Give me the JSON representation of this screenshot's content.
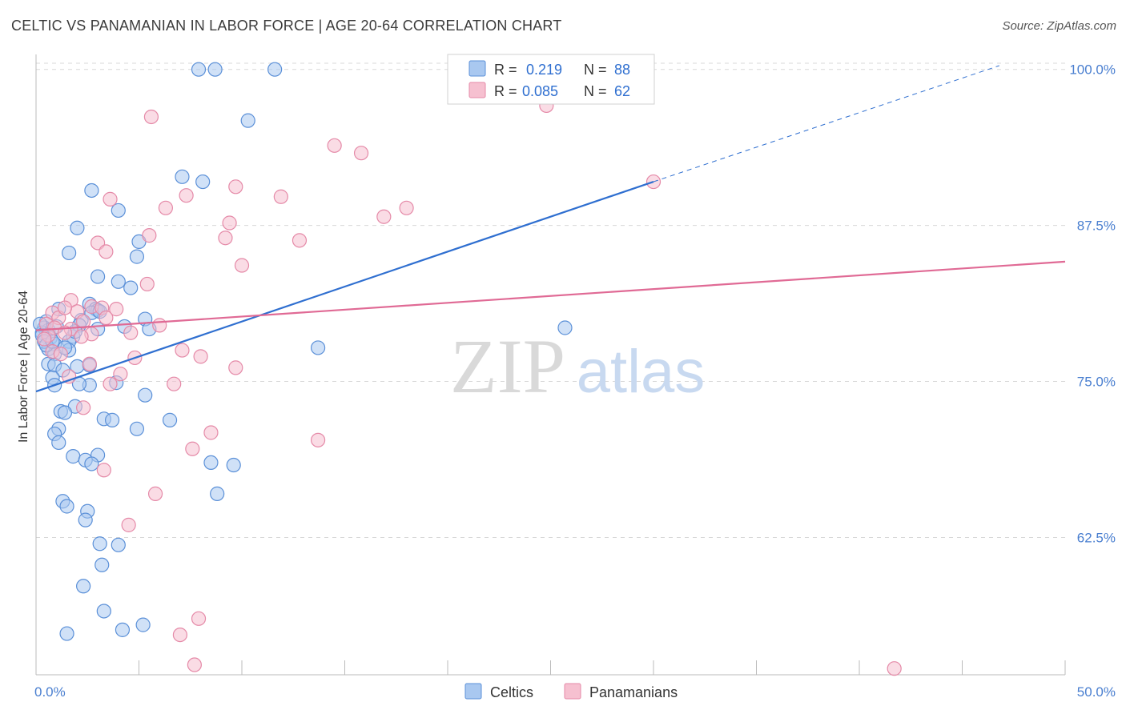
{
  "title": "CELTIC VS PANAMANIAN IN LABOR FORCE | AGE 20-64 CORRELATION CHART",
  "source": "Source: ZipAtlas.com",
  "watermark": {
    "zip": "ZIP",
    "atlas": "atlas"
  },
  "colors": {
    "celtic_fill": "#a9c8f0",
    "celtic_stroke": "#5b90d8",
    "celtic_line": "#2f6fd0",
    "panamanian_fill": "#f6c0d0",
    "panamanian_stroke": "#e58aa8",
    "panamanian_line": "#e06a95",
    "grid": "#d8d8d8",
    "tick_label": "#4a7fd0"
  },
  "legend": {
    "rows": [
      {
        "r_label": "R = ",
        "r_value": "0.219",
        "n_label": "N = ",
        "n_value": "88"
      },
      {
        "r_label": "R = ",
        "r_value": "0.085",
        "n_label": "N = ",
        "n_value": "62"
      }
    ]
  },
  "bottom_legend": [
    "Celtics",
    "Panamanians"
  ],
  "chart_data": {
    "type": "scatter",
    "ylabel": "In Labor Force | Age 20-64",
    "x_tick_labels": [
      "0.0%",
      "50.0%"
    ],
    "y_tick_labels": [
      "100.0%",
      "87.5%",
      "75.0%",
      "62.5%"
    ],
    "y_ticks": [
      100.0,
      87.5,
      75.0,
      62.5
    ],
    "xlim": [
      0,
      50
    ],
    "ylim": [
      51.5,
      101.2
    ],
    "grid": "horizontal dashed",
    "legend_position": "top-center",
    "series": [
      {
        "name": "Celtics",
        "r": 0.219,
        "n": 88,
        "trend": {
          "x0": 0,
          "y0": 74.2,
          "x1": 30,
          "y1": 91.0,
          "dashed_to_x": 46.8,
          "dashed_to_y": 100.3
        },
        "points": [
          [
            7.9,
            100
          ],
          [
            8.7,
            100
          ],
          [
            11.6,
            100
          ],
          [
            10.3,
            95.9
          ],
          [
            7.1,
            91.4
          ],
          [
            8.1,
            91.0
          ],
          [
            2.7,
            90.3
          ],
          [
            4.0,
            88.7
          ],
          [
            2.0,
            87.3
          ],
          [
            1.6,
            85.3
          ],
          [
            5.0,
            86.2
          ],
          [
            4.9,
            85.0
          ],
          [
            3.0,
            83.4
          ],
          [
            4.0,
            83.0
          ],
          [
            4.6,
            82.5
          ],
          [
            2.6,
            81.2
          ],
          [
            2.9,
            80.8
          ],
          [
            1.1,
            80.8
          ],
          [
            2.2,
            79.9
          ],
          [
            3.0,
            80.7
          ],
          [
            5.3,
            80.0
          ],
          [
            4.3,
            79.4
          ],
          [
            5.5,
            79.2
          ],
          [
            0.5,
            79.8
          ],
          [
            0.4,
            79.3
          ],
          [
            0.6,
            79.1
          ],
          [
            0.3,
            78.9
          ],
          [
            0.7,
            78.5
          ],
          [
            1.8,
            78.6
          ],
          [
            1.6,
            78.2
          ],
          [
            0.9,
            78.0
          ],
          [
            2.1,
            79.5
          ],
          [
            3.0,
            79.2
          ],
          [
            0.6,
            77.6
          ],
          [
            1.6,
            77.5
          ],
          [
            0.9,
            77.2
          ],
          [
            13.7,
            77.7
          ],
          [
            0.6,
            76.4
          ],
          [
            0.9,
            76.3
          ],
          [
            2.0,
            76.2
          ],
          [
            2.6,
            76.3
          ],
          [
            1.3,
            75.9
          ],
          [
            0.8,
            75.3
          ],
          [
            3.9,
            74.9
          ],
          [
            2.6,
            74.7
          ],
          [
            2.1,
            74.8
          ],
          [
            0.9,
            74.7
          ],
          [
            5.3,
            73.9
          ],
          [
            1.9,
            73.0
          ],
          [
            1.2,
            72.6
          ],
          [
            1.4,
            72.5
          ],
          [
            3.3,
            72.0
          ],
          [
            3.7,
            71.9
          ],
          [
            6.5,
            71.9
          ],
          [
            1.1,
            71.2
          ],
          [
            4.9,
            71.2
          ],
          [
            0.9,
            70.8
          ],
          [
            1.1,
            70.1
          ],
          [
            1.8,
            69.0
          ],
          [
            3.0,
            69.1
          ],
          [
            2.4,
            68.7
          ],
          [
            2.7,
            68.4
          ],
          [
            8.5,
            68.5
          ],
          [
            9.6,
            68.3
          ],
          [
            8.8,
            66.0
          ],
          [
            1.3,
            65.4
          ],
          [
            1.5,
            65.0
          ],
          [
            2.5,
            64.6
          ],
          [
            2.4,
            63.9
          ],
          [
            3.1,
            62.0
          ],
          [
            4.0,
            61.9
          ],
          [
            3.2,
            60.3
          ],
          [
            2.3,
            58.6
          ],
          [
            3.3,
            56.6
          ],
          [
            1.5,
            54.8
          ],
          [
            4.2,
            55.1
          ],
          [
            5.2,
            55.5
          ],
          [
            25.7,
            79.3
          ],
          [
            0.2,
            79.6
          ],
          [
            0.3,
            78.7
          ],
          [
            0.4,
            78.2
          ],
          [
            0.5,
            77.9
          ],
          [
            0.8,
            78.2
          ],
          [
            1.0,
            79.4
          ],
          [
            1.9,
            79.0
          ],
          [
            2.7,
            80.5
          ],
          [
            3.1,
            80.6
          ],
          [
            1.4,
            77.7
          ]
        ]
      },
      {
        "name": "Panamanians",
        "r": 0.085,
        "n": 62,
        "trend": {
          "x0": 0,
          "y0": 79.1,
          "x1": 50,
          "y1": 84.6
        },
        "points": [
          [
            24.8,
            97.1
          ],
          [
            5.6,
            96.2
          ],
          [
            14.5,
            93.9
          ],
          [
            15.8,
            93.3
          ],
          [
            30.0,
            91.0
          ],
          [
            9.7,
            90.6
          ],
          [
            3.6,
            89.6
          ],
          [
            7.3,
            89.9
          ],
          [
            11.9,
            89.8
          ],
          [
            6.3,
            88.9
          ],
          [
            18.0,
            88.9
          ],
          [
            16.9,
            88.2
          ],
          [
            9.4,
            87.7
          ],
          [
            5.5,
            86.7
          ],
          [
            9.2,
            86.5
          ],
          [
            12.8,
            86.3
          ],
          [
            3.0,
            86.1
          ],
          [
            3.4,
            85.4
          ],
          [
            10.0,
            84.3
          ],
          [
            5.4,
            82.8
          ],
          [
            1.7,
            81.5
          ],
          [
            2.7,
            81.0
          ],
          [
            3.2,
            80.9
          ],
          [
            3.9,
            80.8
          ],
          [
            2.0,
            80.6
          ],
          [
            0.8,
            80.5
          ],
          [
            1.1,
            80.1
          ],
          [
            6.0,
            79.5
          ],
          [
            0.5,
            79.6
          ],
          [
            0.9,
            79.3
          ],
          [
            1.7,
            79.2
          ],
          [
            1.4,
            78.9
          ],
          [
            2.7,
            78.8
          ],
          [
            0.6,
            78.7
          ],
          [
            4.6,
            78.9
          ],
          [
            7.1,
            77.5
          ],
          [
            0.8,
            77.4
          ],
          [
            1.2,
            77.2
          ],
          [
            8.0,
            77.0
          ],
          [
            4.8,
            76.9
          ],
          [
            2.6,
            76.4
          ],
          [
            9.7,
            76.1
          ],
          [
            4.1,
            75.6
          ],
          [
            1.6,
            75.4
          ],
          [
            6.7,
            74.8
          ],
          [
            3.6,
            74.8
          ],
          [
            2.3,
            72.9
          ],
          [
            8.5,
            70.9
          ],
          [
            13.7,
            70.3
          ],
          [
            7.6,
            69.6
          ],
          [
            3.3,
            67.9
          ],
          [
            5.8,
            66.0
          ],
          [
            4.5,
            63.5
          ],
          [
            7.9,
            56.0
          ],
          [
            7.0,
            54.7
          ],
          [
            7.7,
            52.3
          ],
          [
            41.7,
            52.0
          ],
          [
            2.3,
            79.8
          ],
          [
            0.4,
            78.4
          ],
          [
            1.4,
            80.9
          ],
          [
            3.4,
            80.1
          ],
          [
            2.2,
            78.6
          ]
        ]
      }
    ]
  }
}
